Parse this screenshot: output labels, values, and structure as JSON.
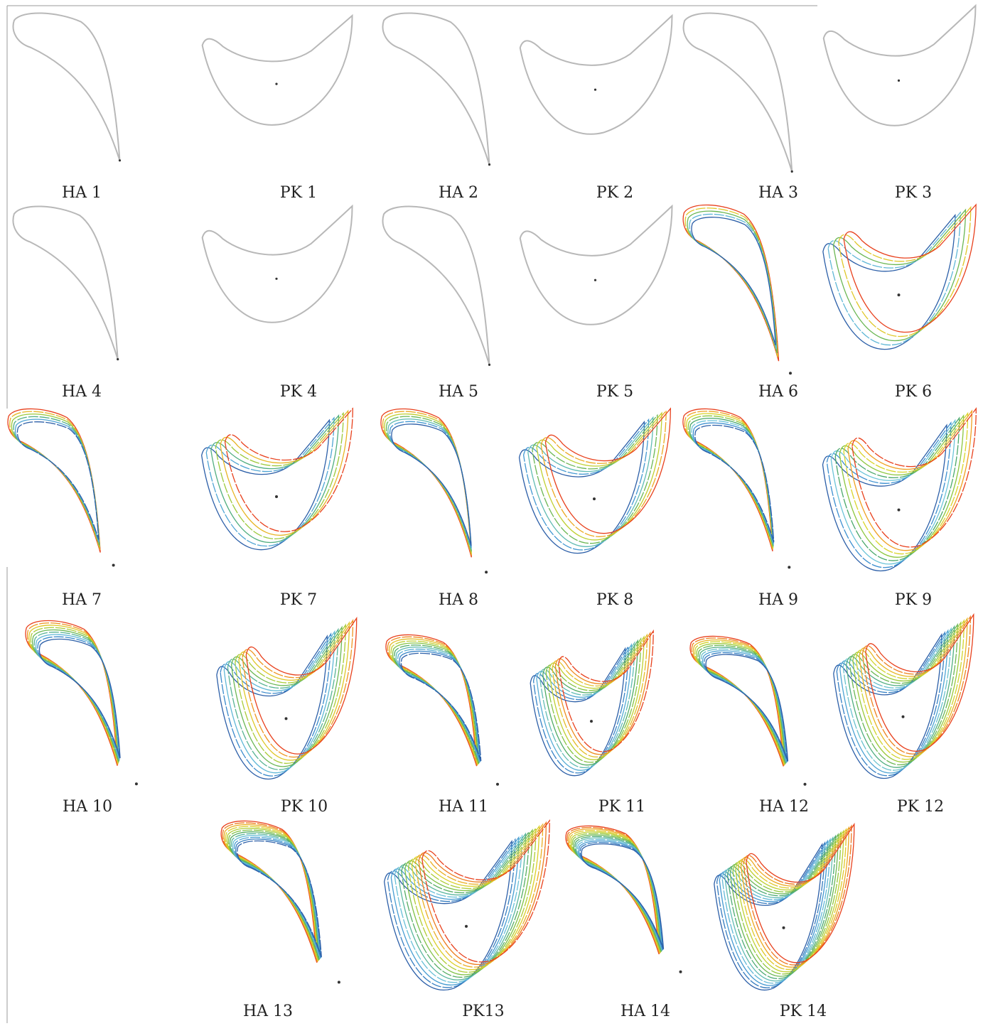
{
  "palette": {
    "single": "#b8b8b8",
    "dot": "#333333",
    "gradient": [
      "#2c5fa8",
      "#3b8fd0",
      "#6cc4d8",
      "#4aa86a",
      "#8cc63e",
      "#d9d42a",
      "#f0a020",
      "#e8401c"
    ]
  },
  "figures": [
    {
      "id": "ha1",
      "label": "HA 1",
      "kind": "ha",
      "layers": 1
    },
    {
      "id": "pk1",
      "label": "PK 1",
      "kind": "pk",
      "layers": 1
    },
    {
      "id": "ha2",
      "label": "HA 2",
      "kind": "ha",
      "layers": 1
    },
    {
      "id": "pk2",
      "label": "PK 2",
      "kind": "pk",
      "layers": 1
    },
    {
      "id": "ha3",
      "label": "HA 3",
      "kind": "ha",
      "layers": 1
    },
    {
      "id": "pk3",
      "label": "PK 3",
      "kind": "pk",
      "layers": 1
    },
    {
      "id": "ha4",
      "label": "HA 4",
      "kind": "ha",
      "layers": 1
    },
    {
      "id": "pk4",
      "label": "PK 4",
      "kind": "pk",
      "layers": 1
    },
    {
      "id": "ha5",
      "label": "HA 5",
      "kind": "ha",
      "layers": 1
    },
    {
      "id": "pk5",
      "label": "PK 5",
      "kind": "pk",
      "layers": 1
    },
    {
      "id": "ha6",
      "label": "HA 6",
      "kind": "ha",
      "layers": 5
    },
    {
      "id": "pk6",
      "label": "PK 6",
      "kind": "pk",
      "layers": 5
    },
    {
      "id": "ha7",
      "label": "HA 7",
      "kind": "ha",
      "layers": 6
    },
    {
      "id": "pk7",
      "label": "PK 7",
      "kind": "pk",
      "layers": 6
    },
    {
      "id": "ha8",
      "label": "HA 8",
      "kind": "ha",
      "layers": 7
    },
    {
      "id": "pk8",
      "label": "PK 8",
      "kind": "pk",
      "layers": 7
    },
    {
      "id": "ha9",
      "label": "HA 9",
      "kind": "ha",
      "layers": 8
    },
    {
      "id": "pk9",
      "label": "PK 9",
      "kind": "pk",
      "layers": 8
    },
    {
      "id": "ha10",
      "label": "HA 10",
      "kind": "ha",
      "layers": 9
    },
    {
      "id": "pk10",
      "label": "PK 10",
      "kind": "pk",
      "layers": 9
    },
    {
      "id": "ha11",
      "label": "HA 11",
      "kind": "ha",
      "layers": 10
    },
    {
      "id": "pk11",
      "label": "PK 11",
      "kind": "pk",
      "layers": 10
    },
    {
      "id": "ha12",
      "label": "HA 12",
      "kind": "ha",
      "layers": 11
    },
    {
      "id": "pk12",
      "label": "PK 12",
      "kind": "pk",
      "layers": 11
    },
    {
      "id": "ha13",
      "label": "HA 13",
      "kind": "ha",
      "layers": 12
    },
    {
      "id": "pk13",
      "label": "PK13",
      "kind": "pk",
      "layers": 12
    },
    {
      "id": "ha14",
      "label": "HA 14",
      "kind": "ha",
      "layers": 13
    },
    {
      "id": "pk14",
      "label": "PK 14",
      "kind": "pk",
      "layers": 13
    }
  ]
}
